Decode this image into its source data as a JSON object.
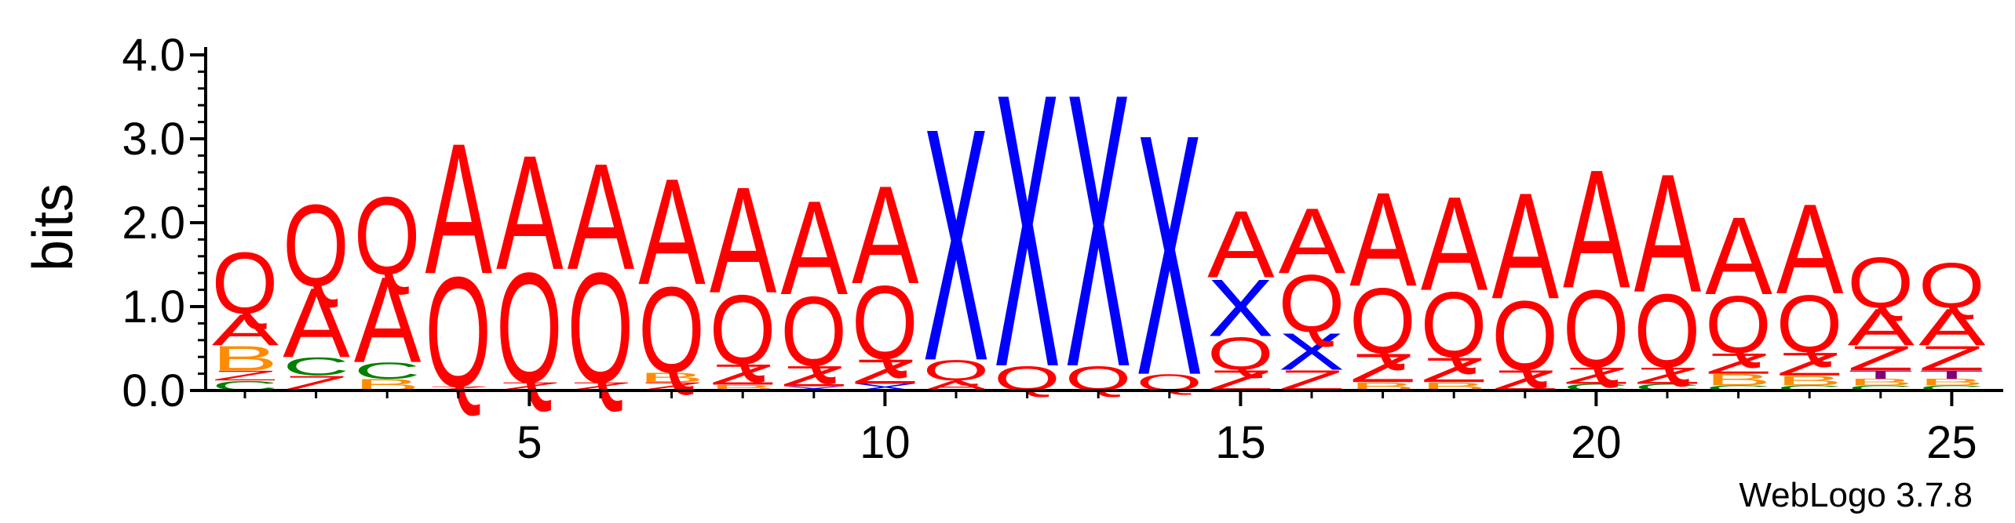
{
  "chart_data": {
    "type": "sequence-logo",
    "ylabel": "bits",
    "ylim": [
      0,
      4.0
    ],
    "y_ticks": [
      "0.0",
      "1.0",
      "2.0",
      "3.0",
      "4.0"
    ],
    "x_ticks": [
      "5",
      "10",
      "15",
      "20",
      "25"
    ],
    "x_tick_values": [
      5,
      10,
      15,
      20,
      25
    ],
    "x_range": [
      1,
      25
    ],
    "footer": "WebLogo 3.7.8",
    "colors": {
      "A": "#ff0000",
      "Q": "#ff0000",
      "Z": "#ff0000",
      "X": "#0000ff",
      "B": "#ff8c00",
      "C": "#008000",
      "T": "#800080"
    },
    "columns": [
      {
        "pos": 1,
        "stack": [
          [
            "C",
            0.12
          ],
          [
            "Z",
            0.12
          ],
          [
            "B",
            0.3
          ],
          [
            "A",
            0.38
          ],
          [
            "Q",
            0.75
          ]
        ]
      },
      {
        "pos": 2,
        "stack": [
          [
            "Z",
            0.18
          ],
          [
            "C",
            0.22
          ],
          [
            "A",
            0.85
          ],
          [
            "Q",
            1.0
          ]
        ]
      },
      {
        "pos": 3,
        "stack": [
          [
            "B",
            0.14
          ],
          [
            "C",
            0.2
          ],
          [
            "A",
            1.05
          ],
          [
            "Q",
            0.95
          ]
        ]
      },
      {
        "pos": 4,
        "stack": [
          [
            "Z",
            0.05
          ],
          [
            "Q",
            1.35
          ],
          [
            "A",
            1.6
          ]
        ]
      },
      {
        "pos": 5,
        "stack": [
          [
            "Z",
            0.1
          ],
          [
            "Q",
            1.35
          ],
          [
            "A",
            1.4
          ]
        ]
      },
      {
        "pos": 6,
        "stack": [
          [
            "Z",
            0.1
          ],
          [
            "Q",
            1.35
          ],
          [
            "A",
            1.3
          ]
        ]
      },
      {
        "pos": 7,
        "stack": [
          [
            "Z",
            0.1
          ],
          [
            "B",
            0.12
          ],
          [
            "Q",
            1.05
          ],
          [
            "A",
            1.3
          ]
        ]
      },
      {
        "pos": 8,
        "stack": [
          [
            "B",
            0.07
          ],
          [
            "Z",
            0.25
          ],
          [
            "Q",
            0.85
          ],
          [
            "A",
            1.3
          ]
        ]
      },
      {
        "pos": 9,
        "stack": [
          [
            "X",
            0.05
          ],
          [
            "Z",
            0.25
          ],
          [
            "Q",
            0.85
          ],
          [
            "A",
            1.15
          ]
        ]
      },
      {
        "pos": 10,
        "stack": [
          [
            "X",
            0.08
          ],
          [
            "Z",
            0.3
          ],
          [
            "Q",
            0.9
          ],
          [
            "A",
            1.2
          ]
        ]
      },
      {
        "pos": 11,
        "stack": [
          [
            "A",
            0.12
          ],
          [
            "Q",
            0.25
          ],
          [
            "X",
            2.85
          ]
        ]
      },
      {
        "pos": 12,
        "stack": [
          [
            "Q",
            0.3
          ],
          [
            "X",
            3.35
          ]
        ]
      },
      {
        "pos": 13,
        "stack": [
          [
            "Q",
            0.3
          ],
          [
            "X",
            3.35
          ]
        ]
      },
      {
        "pos": 14,
        "stack": [
          [
            "Q",
            0.2
          ],
          [
            "X",
            2.95
          ]
        ]
      },
      {
        "pos": 15,
        "stack": [
          [
            "Z",
            0.25
          ],
          [
            "Q",
            0.4
          ],
          [
            "X",
            0.7
          ],
          [
            "A",
            0.82
          ]
        ]
      },
      {
        "pos": 16,
        "stack": [
          [
            "Z",
            0.25
          ],
          [
            "X",
            0.45
          ],
          [
            "Q",
            0.7
          ],
          [
            "A",
            0.8
          ]
        ]
      },
      {
        "pos": 17,
        "stack": [
          [
            "B",
            0.1
          ],
          [
            "Z",
            0.35
          ],
          [
            "Q",
            0.8
          ],
          [
            "A",
            1.15
          ]
        ]
      },
      {
        "pos": 18,
        "stack": [
          [
            "B",
            0.1
          ],
          [
            "Z",
            0.3
          ],
          [
            "Q",
            0.8
          ],
          [
            "A",
            1.15
          ]
        ]
      },
      {
        "pos": 19,
        "stack": [
          [
            "Z",
            0.25
          ],
          [
            "Q",
            0.85
          ],
          [
            "A",
            1.3
          ]
        ]
      },
      {
        "pos": 20,
        "stack": [
          [
            "C",
            0.08
          ],
          [
            "Z",
            0.2
          ],
          [
            "Q",
            0.95
          ],
          [
            "A",
            1.45
          ]
        ]
      },
      {
        "pos": 21,
        "stack": [
          [
            "C",
            0.08
          ],
          [
            "Z",
            0.2
          ],
          [
            "Q",
            0.9
          ],
          [
            "A",
            1.45
          ]
        ]
      },
      {
        "pos": 22,
        "stack": [
          [
            "C",
            0.06
          ],
          [
            "B",
            0.14
          ],
          [
            "Z",
            0.25
          ],
          [
            "Q",
            0.7
          ],
          [
            "A",
            0.95
          ]
        ]
      },
      {
        "pos": 23,
        "stack": [
          [
            "C",
            0.06
          ],
          [
            "B",
            0.12
          ],
          [
            "Z",
            0.28
          ],
          [
            "Q",
            0.7
          ],
          [
            "A",
            1.1
          ]
        ]
      },
      {
        "pos": 24,
        "stack": [
          [
            "C",
            0.06
          ],
          [
            "B",
            0.08
          ],
          [
            "T",
            0.1
          ],
          [
            "Z",
            0.3
          ],
          [
            "A",
            0.45
          ],
          [
            "Q",
            0.62
          ]
        ]
      },
      {
        "pos": 25,
        "stack": [
          [
            "C",
            0.06
          ],
          [
            "B",
            0.08
          ],
          [
            "T",
            0.1
          ],
          [
            "Z",
            0.3
          ],
          [
            "A",
            0.45
          ],
          [
            "Q",
            0.55
          ]
        ]
      }
    ]
  }
}
